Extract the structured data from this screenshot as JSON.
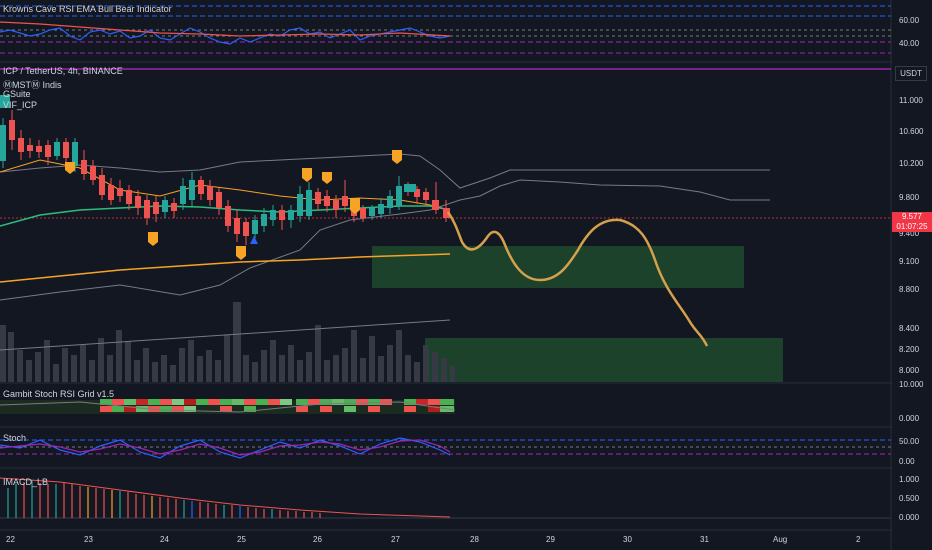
{
  "panes": {
    "rsi_title": "Krowns Cave RSI EMA Bull Bear Indicator",
    "main_title": "ICP / TetherUS, 4h, BINANCE",
    "main_sub": [
      "ⓂMSTⓂ Indis",
      "GSuite",
      "VIF_ICP"
    ],
    "stoch_grid_title": "Gambit Stoch RSI Grid v1.5",
    "stoch_title": "Stoch",
    "macd_title": "IMACD_LB"
  },
  "price_axis": {
    "currency": "USDT",
    "rsi_ticks": [
      "60.00",
      "40.00"
    ],
    "main_ticks": [
      "11.000",
      "10.600",
      "10.200",
      "9.800",
      "9.400",
      "9.100",
      "8.800",
      "8.400",
      "8.200",
      "8.000"
    ],
    "current_price": "9.577",
    "countdown": "01:07:25",
    "stoch_grid_ticks": [
      "10.000",
      "0.000"
    ],
    "stoch_ticks": [
      "50.00",
      "0.00"
    ],
    "macd_ticks": [
      "1.000",
      "0.500",
      "0.000"
    ]
  },
  "time_axis": [
    "22",
    "23",
    "24",
    "25",
    "26",
    "27",
    "28",
    "29",
    "30",
    "31",
    "Aug",
    "2"
  ],
  "colors": {
    "background": "#131722",
    "up": "#26a69a",
    "down": "#ef5350",
    "projection": "#d4a14a",
    "ema_orange": "#f7a325",
    "ema_green": "#2bbd7e",
    "band_grey": "#787b86",
    "zone_green": "#1f4a2e",
    "rsi_blue": "#2962ff",
    "purple": "#9c27b0",
    "price_tag": "#f23645"
  }
}
